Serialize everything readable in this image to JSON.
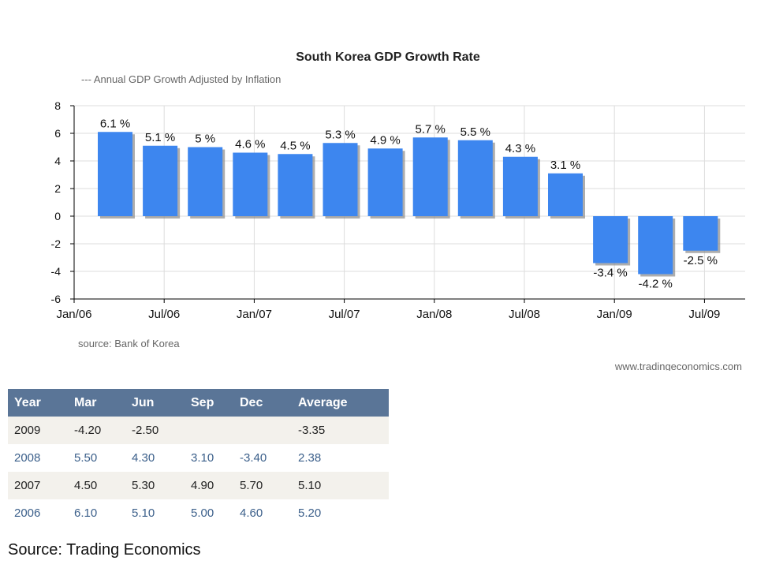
{
  "chart_data": {
    "type": "bar",
    "title": "South Korea GDP Growth Rate",
    "legend": "---  Annual GDP Growth Adjusted by Inflation",
    "source": "source: Bank of Korea",
    "site": "www.tradingeconomics.com",
    "ylim": [
      -6,
      8
    ],
    "yticks": [
      8,
      6,
      4,
      2,
      0,
      -2,
      -4,
      -6
    ],
    "xtick_labels": [
      "Jan/06",
      "Jul/06",
      "Jan/07",
      "Jul/07",
      "Jan/08",
      "Jul/08",
      "Jan/09",
      "Jul/09"
    ],
    "categories": [
      "Mar/06",
      "Jun/06",
      "Sep/06",
      "Dec/06",
      "Mar/07",
      "Jun/07",
      "Sep/07",
      "Dec/07",
      "Mar/08",
      "Jun/08",
      "Sep/08",
      "Dec/08",
      "Mar/09",
      "Jun/09"
    ],
    "values": [
      6.1,
      5.1,
      5.0,
      4.6,
      4.5,
      5.3,
      4.9,
      5.7,
      5.5,
      4.3,
      3.1,
      -3.4,
      -4.2,
      -2.5
    ],
    "labels": [
      "6.1 %",
      "5.1 %",
      "5 %",
      "4.6 %",
      "4.5 %",
      "5.3 %",
      "4.9 %",
      "5.7 %",
      "5.5 %",
      "4.3 %",
      "3.1 %",
      "-3.4 %",
      "-4.2 %",
      "-2.5 %"
    ],
    "grid": true,
    "colors": {
      "bar": "#3d86ef",
      "shadow": "#8a8a8a",
      "grid": "#dddddd"
    }
  },
  "table": {
    "headers": [
      "Year",
      "Mar",
      "Jun",
      "Sep",
      "Dec",
      "Average"
    ],
    "rows": [
      [
        "2009",
        "-4.20",
        "-2.50",
        "",
        "",
        "-3.35"
      ],
      [
        "2008",
        "5.50",
        "4.30",
        "3.10",
        "-3.40",
        "2.38"
      ],
      [
        "2007",
        "4.50",
        "5.30",
        "4.90",
        "5.70",
        "5.10"
      ],
      [
        "2006",
        "6.10",
        "5.10",
        "5.00",
        "4.60",
        "5.20"
      ]
    ]
  },
  "footer": {
    "source": "Source: Trading Economics"
  }
}
